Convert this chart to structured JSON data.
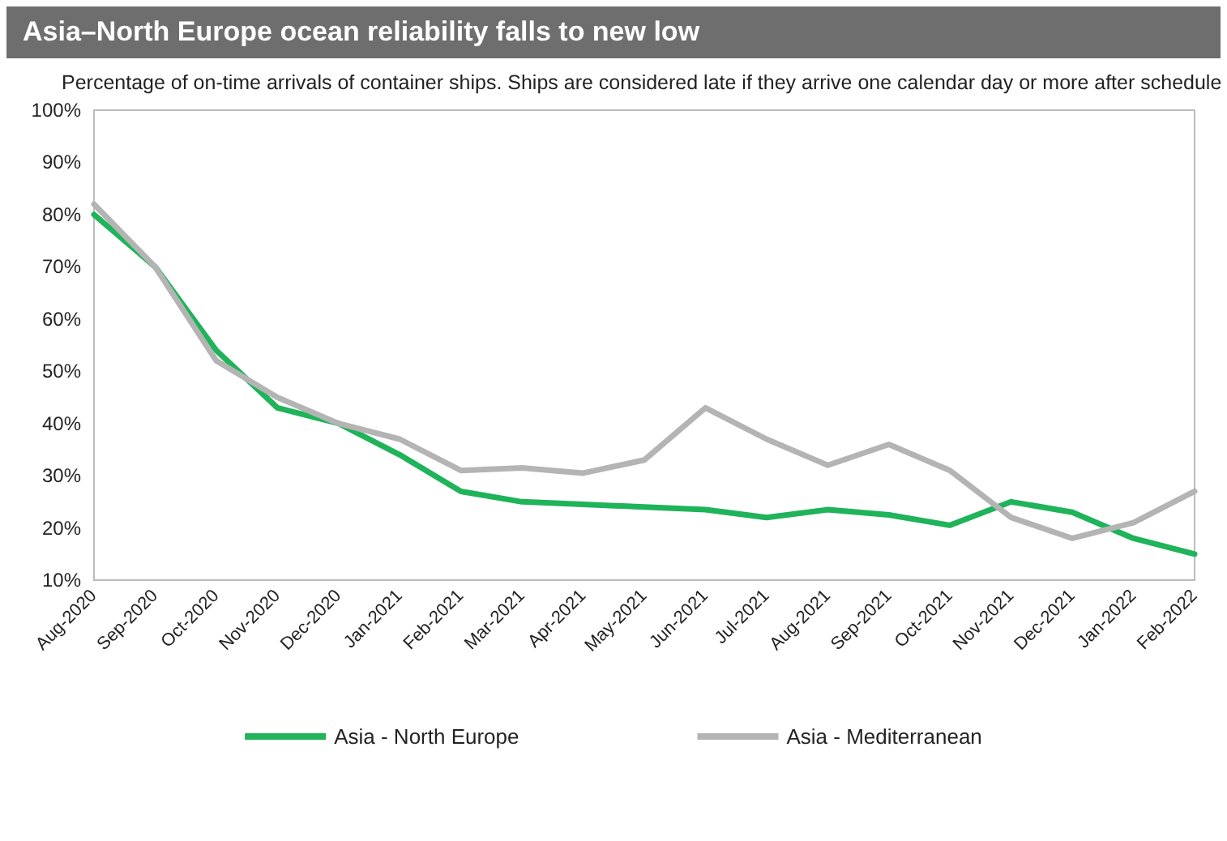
{
  "chart_data": {
    "type": "line",
    "title": "Asia–North Europe ocean reliability falls to new low",
    "subtitle": "Percentage of on-time arrivals of container ships. Ships are considered late if they arrive one calendar day or more after schedule",
    "categories": [
      "Aug-2020",
      "Sep-2020",
      "Oct-2020",
      "Nov-2020",
      "Dec-2020",
      "Jan-2021",
      "Feb-2021",
      "Mar-2021",
      "Apr-2021",
      "May-2021",
      "Jun-2021",
      "Jul-2021",
      "Aug-2021",
      "Sep-2021",
      "Oct-2021",
      "Nov-2021",
      "Dec-2021",
      "Jan-2022",
      "Feb-2022"
    ],
    "series": [
      {
        "name": "Asia - North Europe",
        "color": "#1fb35a",
        "values": [
          80,
          70,
          54,
          43,
          40,
          34,
          27,
          25,
          24.5,
          24,
          23.5,
          22,
          23.5,
          22.5,
          20.5,
          25,
          23,
          18,
          15
        ]
      },
      {
        "name": "Asia - Mediterranean",
        "color": "#b4b4b4",
        "values": [
          82,
          70,
          52,
          45,
          40,
          37,
          31,
          31.5,
          30.5,
          33,
          43,
          37,
          32,
          36,
          31,
          22,
          18,
          21,
          27
        ]
      }
    ],
    "ylim": [
      10,
      100
    ],
    "yticks": [
      {
        "value": 10,
        "label": "10%"
      },
      {
        "value": 20,
        "label": "20%"
      },
      {
        "value": 30,
        "label": "30%"
      },
      {
        "value": 40,
        "label": "40%"
      },
      {
        "value": 50,
        "label": "50%"
      },
      {
        "value": 60,
        "label": "60%"
      },
      {
        "value": 70,
        "label": "70%"
      },
      {
        "value": 80,
        "label": "80%"
      },
      {
        "value": 90,
        "label": "90%"
      },
      {
        "value": 100,
        "label": "100%"
      }
    ],
    "grid": false,
    "legend": "bottom",
    "marker": "none",
    "line_style": "solid"
  }
}
